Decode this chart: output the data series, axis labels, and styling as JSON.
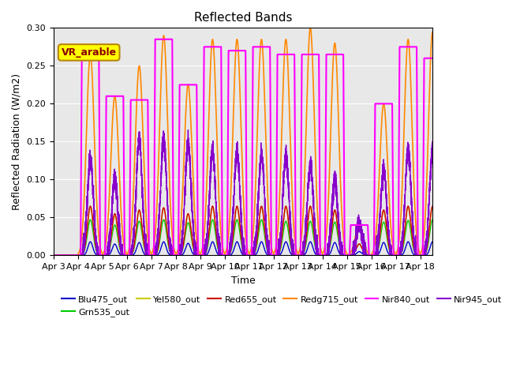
{
  "title": "Reflected Bands",
  "xlabel": "Time",
  "ylabel": "Reflected Radiation (W/m2)",
  "ylim": [
    0.0,
    0.3
  ],
  "yticks": [
    0.0,
    0.05,
    0.1,
    0.15,
    0.2,
    0.25,
    0.3
  ],
  "xtick_labels": [
    "Apr 3",
    "Apr 4",
    "Apr 5",
    "Apr 6",
    "Apr 7",
    "Apr 8",
    "Apr 9",
    "Apr 10",
    "Apr 11",
    "Apr 12",
    "Apr 13",
    "Apr 14",
    "Apr 15",
    "Apr 16",
    "Apr 17",
    "Apr 18"
  ],
  "annotation_text": "VR_arable",
  "annotation_color": "darkred",
  "annotation_fontsize": 9,
  "background_color": "#e8e8e8",
  "lines": {
    "Blu475_out": {
      "color": "#0000cc",
      "lw": 1.0
    },
    "Grn535_out": {
      "color": "#00cc00",
      "lw": 1.0
    },
    "Yel580_out": {
      "color": "#cccc00",
      "lw": 1.0
    },
    "Red655_out": {
      "color": "#cc0000",
      "lw": 1.0
    },
    "Redg715_out": {
      "color": "#ff8800",
      "lw": 1.2
    },
    "Nir840_out": {
      "color": "#ff00ff",
      "lw": 1.5
    },
    "Nir945_out": {
      "color": "#8800cc",
      "lw": 1.0
    }
  },
  "nir840_peaks": [
    0.0,
    0.265,
    0.21,
    0.205,
    0.285,
    0.225,
    0.275,
    0.27,
    0.275,
    0.265,
    0.265,
    0.265,
    0.04,
    0.2,
    0.275,
    0.26
  ],
  "redg715_peaks": [
    0.0,
    0.265,
    0.21,
    0.25,
    0.29,
    0.225,
    0.285,
    0.285,
    0.285,
    0.285,
    0.3,
    0.28,
    0.04,
    0.2,
    0.285,
    0.295
  ],
  "nir945_peaks": [
    0.0,
    0.128,
    0.1,
    0.155,
    0.155,
    0.15,
    0.138,
    0.135,
    0.133,
    0.133,
    0.12,
    0.1,
    0.04,
    0.114,
    0.14,
    0.14
  ],
  "red655_peaks": [
    0.0,
    0.065,
    0.055,
    0.06,
    0.063,
    0.055,
    0.065,
    0.065,
    0.065,
    0.065,
    0.065,
    0.06,
    0.015,
    0.06,
    0.065,
    0.065
  ],
  "grn535_peaks": [
    0.0,
    0.047,
    0.04,
    0.045,
    0.047,
    0.043,
    0.047,
    0.047,
    0.047,
    0.045,
    0.045,
    0.044,
    0.015,
    0.044,
    0.046,
    0.047
  ],
  "yel580_peaks": [
    0.0,
    0.063,
    0.052,
    0.058,
    0.062,
    0.053,
    0.063,
    0.063,
    0.063,
    0.063,
    0.063,
    0.058,
    0.015,
    0.058,
    0.063,
    0.063
  ],
  "blu475_peaks": [
    0.0,
    0.018,
    0.015,
    0.017,
    0.018,
    0.016,
    0.018,
    0.018,
    0.018,
    0.018,
    0.018,
    0.017,
    0.005,
    0.017,
    0.018,
    0.018
  ]
}
